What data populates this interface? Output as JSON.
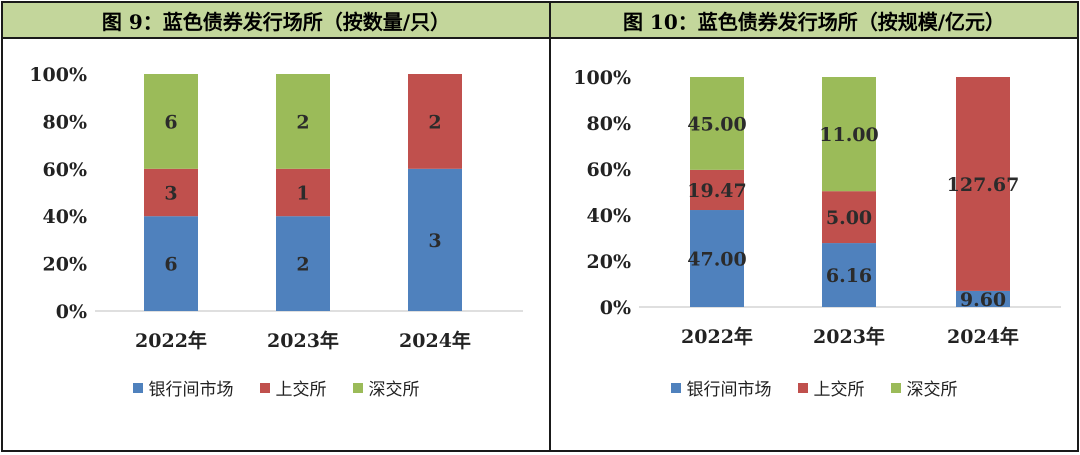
{
  "colors": {
    "bank": "#4f81bd",
    "sse": "#c0504d",
    "szse": "#9bbb59",
    "title_bg": "#c3d69b"
  },
  "chart_data": [
    {
      "type": "bar",
      "stacked": "percent",
      "title": "图 9：蓝色债券发行场所（按数量/只）",
      "categories": [
        "2022年",
        "2023年",
        "2024年"
      ],
      "y_ticks": [
        "0%",
        "20%",
        "40%",
        "60%",
        "80%",
        "100%"
      ],
      "ylim": [
        0,
        100
      ],
      "grid": false,
      "legend_position": "bottom",
      "series": [
        {
          "name": "银行间市场",
          "values": [
            6,
            2,
            3
          ],
          "labels": [
            "6",
            "2",
            "3"
          ]
        },
        {
          "name": "上交所",
          "values": [
            3,
            1,
            2
          ],
          "labels": [
            "3",
            "1",
            "2"
          ]
        },
        {
          "name": "深交所",
          "values": [
            6,
            2,
            0
          ],
          "labels": [
            "6",
            "2",
            ""
          ]
        }
      ]
    },
    {
      "type": "bar",
      "stacked": "percent",
      "title": "图 10：蓝色债券发行场所（按规模/亿元）",
      "categories": [
        "2022年",
        "2023年",
        "2024年"
      ],
      "y_ticks": [
        "0%",
        "20%",
        "40%",
        "60%",
        "80%",
        "100%"
      ],
      "ylim": [
        0,
        100
      ],
      "grid": false,
      "legend_position": "bottom",
      "series": [
        {
          "name": "银行间市场",
          "values": [
            47.0,
            6.16,
            9.6
          ],
          "labels": [
            "47.00",
            "6.16",
            "9.60"
          ]
        },
        {
          "name": "上交所",
          "values": [
            19.47,
            5.0,
            127.67
          ],
          "labels": [
            "19.47",
            "5.00",
            "127.67"
          ]
        },
        {
          "name": "深交所",
          "values": [
            45.0,
            11.0,
            0
          ],
          "labels": [
            "45.00",
            "11.00",
            ""
          ]
        }
      ]
    }
  ]
}
